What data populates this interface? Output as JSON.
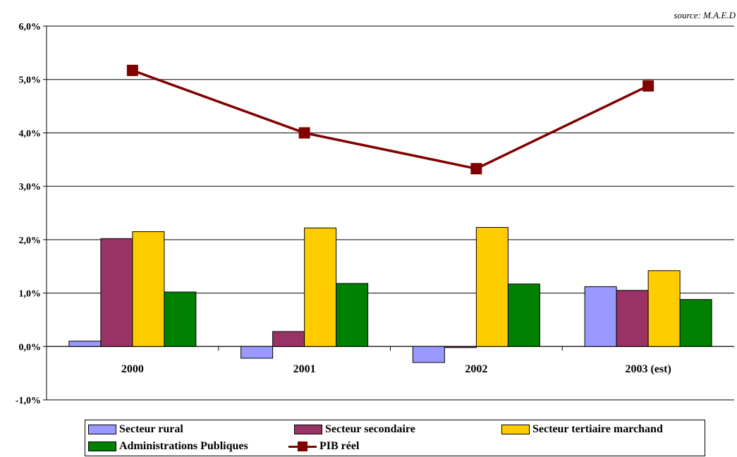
{
  "source": "source: M.A.E.D",
  "chart_data": {
    "type": "bar",
    "categories": [
      "2000",
      "2001",
      "2002",
      "2003 (est)"
    ],
    "y_ticks": [
      "-1,0%",
      "0,0%",
      "1,0%",
      "2,0%",
      "3,0%",
      "4,0%",
      "5,0%",
      "6,0%"
    ],
    "ylim": [
      -1.0,
      6.0
    ],
    "grid": true,
    "legend_position": "bottom",
    "series": [
      {
        "name": "Secteur rural",
        "type": "bar",
        "color": "#9999FF",
        "values": [
          0.1,
          -0.22,
          -0.3,
          1.12
        ]
      },
      {
        "name": "Secteur secondaire",
        "type": "bar",
        "color": "#993366",
        "values": [
          2.02,
          0.28,
          -0.02,
          1.05
        ]
      },
      {
        "name": "Secteur tertiaire marchand",
        "type": "bar",
        "color": "#FFCC00",
        "values": [
          2.15,
          2.22,
          2.23,
          1.42
        ]
      },
      {
        "name": "Administrations Publiques",
        "type": "bar",
        "color": "#008000",
        "values": [
          1.02,
          1.18,
          1.17,
          0.88
        ]
      },
      {
        "name": "PIB réel",
        "type": "line",
        "color": "#800000",
        "values": [
          5.17,
          4.0,
          3.33,
          4.88
        ]
      }
    ]
  }
}
